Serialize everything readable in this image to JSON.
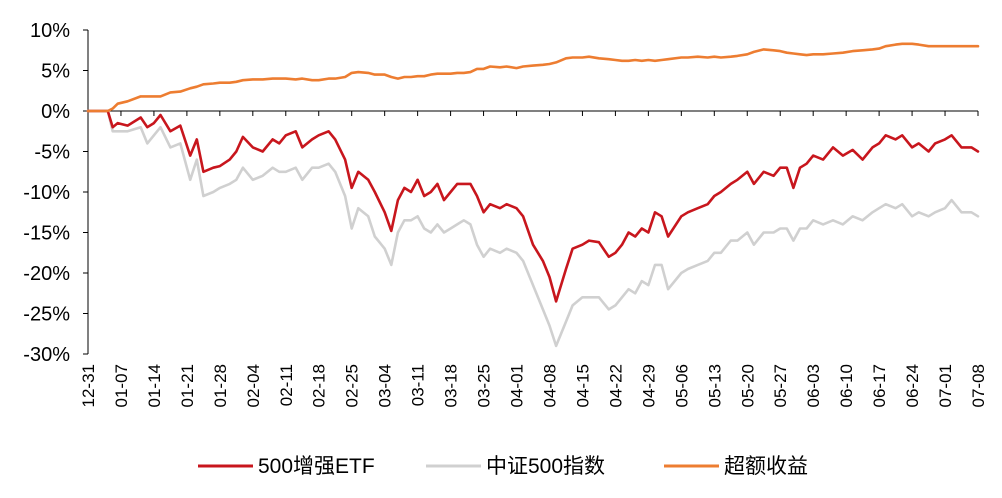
{
  "chart_data": {
    "type": "line",
    "title": "",
    "xlabel": "",
    "ylabel": "",
    "ylim": [
      -30,
      10
    ],
    "grid": false,
    "legend_position": "bottom",
    "y_ticks": [
      "10%",
      "5%",
      "0%",
      "-5%",
      "-10%",
      "-15%",
      "-20%",
      "-25%",
      "-30%"
    ],
    "x_ticks": [
      "12-31",
      "01-07",
      "01-14",
      "01-21",
      "01-28",
      "02-04",
      "02-11",
      "02-18",
      "02-25",
      "03-04",
      "03-11",
      "03-18",
      "03-25",
      "04-01",
      "04-08",
      "04-15",
      "04-22",
      "04-29",
      "05-06",
      "05-13",
      "05-20",
      "05-27",
      "06-03",
      "06-10",
      "06-17",
      "06-24",
      "07-01",
      "07-08"
    ],
    "series": [
      {
        "name": "500增强ETF",
        "color": "#c8161d",
        "x": [
          0,
          0.6,
          0.75,
          0.9,
          1.2,
          1.6,
          1.8,
          2.0,
          2.2,
          2.5,
          2.8,
          3.1,
          3.3,
          3.5,
          3.8,
          4.0,
          4.3,
          4.5,
          4.7,
          5.0,
          5.3,
          5.6,
          5.8,
          6.0,
          6.3,
          6.5,
          6.8,
          7.0,
          7.3,
          7.5,
          7.8,
          8.0,
          8.2,
          8.5,
          8.7,
          9.0,
          9.2,
          9.4,
          9.6,
          9.8,
          10.0,
          10.2,
          10.4,
          10.6,
          10.8,
          11.0,
          11.2,
          11.4,
          11.6,
          11.8,
          12.0,
          12.2,
          12.5,
          12.7,
          13.0,
          13.2,
          13.5,
          13.8,
          14.0,
          14.2,
          14.5,
          14.7,
          15.0,
          15.2,
          15.5,
          15.8,
          16.0,
          16.2,
          16.4,
          16.6,
          16.8,
          17.0,
          17.2,
          17.4,
          17.6,
          18.0,
          18.2,
          18.5,
          18.8,
          19.0,
          19.2,
          19.5,
          19.7,
          20.0,
          20.2,
          20.5,
          20.8,
          21.0,
          21.2,
          21.4,
          21.6,
          21.8,
          22.0,
          22.3,
          22.6,
          22.9,
          23.2,
          23.5,
          23.8,
          24.0,
          24.2,
          24.5,
          24.7,
          25.0,
          25.2,
          25.5,
          25.7,
          26.0,
          26.2,
          26.5,
          26.8,
          27.0
        ],
        "values": [
          0,
          0,
          -2,
          -1.5,
          -1.8,
          -0.8,
          -2.0,
          -1.5,
          -0.5,
          -2.5,
          -1.8,
          -5.5,
          -3.5,
          -7.5,
          -7.0,
          -6.8,
          -6.0,
          -5.0,
          -3.2,
          -4.5,
          -5.0,
          -3.5,
          -4.0,
          -3.0,
          -2.5,
          -4.5,
          -3.5,
          -3.0,
          -2.5,
          -3.5,
          -6.0,
          -9.5,
          -7.5,
          -8.5,
          -10.0,
          -12.5,
          -14.8,
          -11.0,
          -9.5,
          -10.0,
          -8.5,
          -10.5,
          -10.0,
          -9.0,
          -11.0,
          -10.0,
          -9.0,
          -9.0,
          -9.0,
          -10.5,
          -12.5,
          -11.5,
          -12.0,
          -11.5,
          -12.0,
          -13.0,
          -16.5,
          -18.5,
          -20.5,
          -23.5,
          -19.5,
          -17.0,
          -16.5,
          -16.0,
          -16.2,
          -18.0,
          -17.5,
          -16.5,
          -15.0,
          -15.5,
          -14.5,
          -15.0,
          -12.5,
          -13.0,
          -15.5,
          -13.0,
          -12.5,
          -12.0,
          -11.5,
          -10.5,
          -10.0,
          -9.0,
          -8.5,
          -7.5,
          -9.0,
          -7.5,
          -8.0,
          -7.0,
          -7.0,
          -9.5,
          -7.0,
          -6.5,
          -5.5,
          -6.0,
          -4.5,
          -5.5,
          -4.8,
          -6.0,
          -4.5,
          -4.0,
          -3.0,
          -3.5,
          -3.0,
          -4.5,
          -4.0,
          -5.0,
          -4.0,
          -3.5,
          -3.0,
          -4.5,
          -4.5,
          -5.0
        ],
        "chart_type": "line"
      },
      {
        "name": "中证500指数",
        "color": "#d0d0d0",
        "x": [
          0,
          0.6,
          0.75,
          0.9,
          1.2,
          1.6,
          1.8,
          2.0,
          2.2,
          2.5,
          2.8,
          3.1,
          3.3,
          3.5,
          3.8,
          4.0,
          4.3,
          4.5,
          4.7,
          5.0,
          5.3,
          5.6,
          5.8,
          6.0,
          6.3,
          6.5,
          6.8,
          7.0,
          7.3,
          7.5,
          7.8,
          8.0,
          8.2,
          8.5,
          8.7,
          9.0,
          9.2,
          9.4,
          9.6,
          9.8,
          10.0,
          10.2,
          10.4,
          10.6,
          10.8,
          11.0,
          11.2,
          11.4,
          11.6,
          11.8,
          12.0,
          12.2,
          12.5,
          12.7,
          13.0,
          13.2,
          13.5,
          13.8,
          14.0,
          14.2,
          14.5,
          14.7,
          15.0,
          15.2,
          15.5,
          15.8,
          16.0,
          16.2,
          16.4,
          16.6,
          16.8,
          17.0,
          17.2,
          17.4,
          17.6,
          18.0,
          18.2,
          18.5,
          18.8,
          19.0,
          19.2,
          19.5,
          19.7,
          20.0,
          20.2,
          20.5,
          20.8,
          21.0,
          21.2,
          21.4,
          21.6,
          21.8,
          22.0,
          22.3,
          22.6,
          22.9,
          23.2,
          23.5,
          23.8,
          24.0,
          24.2,
          24.5,
          24.7,
          25.0,
          25.2,
          25.5,
          25.7,
          26.0,
          26.2,
          26.5,
          26.8,
          27.0
        ],
        "values": [
          0,
          0,
          -2.5,
          -2.5,
          -2.5,
          -2.0,
          -4.0,
          -3.0,
          -2.0,
          -4.5,
          -4.0,
          -8.5,
          -6.0,
          -10.5,
          -10.0,
          -9.5,
          -9.0,
          -8.5,
          -7.0,
          -8.5,
          -8.0,
          -7.0,
          -7.5,
          -7.5,
          -7.0,
          -8.5,
          -7.0,
          -7.0,
          -6.5,
          -7.5,
          -10.5,
          -14.5,
          -12.0,
          -13.0,
          -15.5,
          -17.0,
          -19.0,
          -15.0,
          -13.5,
          -13.5,
          -13.0,
          -14.5,
          -15.0,
          -14.0,
          -15.0,
          -14.5,
          -14.0,
          -13.5,
          -14.0,
          -16.5,
          -18.0,
          -17.0,
          -17.5,
          -17.0,
          -17.5,
          -18.5,
          -21.5,
          -24.5,
          -26.5,
          -29.0,
          -26.0,
          -24.0,
          -23.0,
          -23.0,
          -23.0,
          -24.5,
          -24.0,
          -23.0,
          -22.0,
          -22.5,
          -21.0,
          -21.5,
          -19.0,
          -19.0,
          -22.0,
          -20.0,
          -19.5,
          -19.0,
          -18.5,
          -17.5,
          -17.5,
          -16.0,
          -16.0,
          -15.0,
          -16.5,
          -15.0,
          -15.0,
          -14.5,
          -14.5,
          -16.0,
          -14.5,
          -14.5,
          -13.5,
          -14.0,
          -13.5,
          -14.0,
          -13.0,
          -13.5,
          -12.5,
          -12.0,
          -11.5,
          -12.0,
          -11.5,
          -13.0,
          -12.5,
          -13.0,
          -12.5,
          -12.0,
          -11.0,
          -12.5,
          -12.5,
          -13.0
        ],
        "chart_type": "line"
      },
      {
        "name": "超额收益",
        "color": "#ed7d31",
        "x": [
          0,
          0.6,
          0.75,
          0.9,
          1.2,
          1.6,
          1.8,
          2.0,
          2.2,
          2.5,
          2.8,
          3.1,
          3.3,
          3.5,
          3.8,
          4.0,
          4.3,
          4.5,
          4.7,
          5.0,
          5.3,
          5.6,
          5.8,
          6.0,
          6.3,
          6.5,
          6.8,
          7.0,
          7.3,
          7.5,
          7.8,
          8.0,
          8.2,
          8.5,
          8.7,
          9.0,
          9.2,
          9.4,
          9.6,
          9.8,
          10.0,
          10.2,
          10.4,
          10.6,
          10.8,
          11.0,
          11.2,
          11.4,
          11.6,
          11.8,
          12.0,
          12.2,
          12.5,
          12.7,
          13.0,
          13.2,
          13.5,
          13.8,
          14.0,
          14.2,
          14.5,
          14.7,
          15.0,
          15.2,
          15.5,
          15.8,
          16.0,
          16.2,
          16.4,
          16.6,
          16.8,
          17.0,
          17.2,
          17.4,
          17.6,
          18.0,
          18.2,
          18.5,
          18.8,
          19.0,
          19.2,
          19.5,
          19.7,
          20.0,
          20.2,
          20.5,
          20.8,
          21.0,
          21.2,
          21.4,
          21.6,
          21.8,
          22.0,
          22.3,
          22.6,
          22.9,
          23.2,
          23.5,
          23.8,
          24.0,
          24.2,
          24.5,
          24.7,
          25.0,
          25.2,
          25.5,
          25.7,
          26.0,
          26.2,
          26.5,
          26.8,
          27.0
        ],
        "values": [
          0,
          0,
          0.3,
          0.9,
          1.2,
          1.8,
          1.8,
          1.8,
          1.8,
          2.3,
          2.4,
          2.8,
          3.0,
          3.3,
          3.4,
          3.5,
          3.5,
          3.6,
          3.8,
          3.9,
          3.9,
          4.0,
          4.0,
          4.0,
          3.9,
          4.0,
          3.8,
          3.8,
          4.0,
          4.0,
          4.2,
          4.7,
          4.8,
          4.7,
          4.5,
          4.5,
          4.2,
          4.0,
          4.2,
          4.2,
          4.3,
          4.3,
          4.5,
          4.6,
          4.6,
          4.6,
          4.7,
          4.7,
          4.8,
          5.2,
          5.2,
          5.5,
          5.4,
          5.5,
          5.3,
          5.5,
          5.6,
          5.7,
          5.8,
          6.0,
          6.5,
          6.6,
          6.6,
          6.7,
          6.5,
          6.4,
          6.3,
          6.2,
          6.2,
          6.3,
          6.2,
          6.3,
          6.2,
          6.3,
          6.4,
          6.6,
          6.6,
          6.7,
          6.6,
          6.7,
          6.6,
          6.7,
          6.8,
          7.0,
          7.3,
          7.6,
          7.5,
          7.4,
          7.2,
          7.1,
          7.0,
          6.9,
          7.0,
          7.0,
          7.1,
          7.2,
          7.4,
          7.5,
          7.6,
          7.7,
          8.0,
          8.2,
          8.3,
          8.3,
          8.2,
          8.0,
          8.0,
          8.0,
          8.0,
          8.0,
          8.0,
          8.0
        ],
        "chart_type": "line"
      }
    ]
  }
}
